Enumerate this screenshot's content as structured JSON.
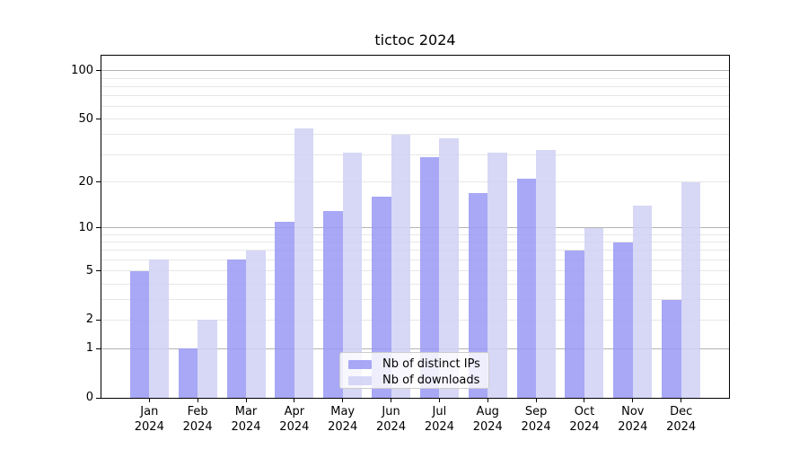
{
  "title": "tictoc 2024",
  "colors": {
    "series_distinct_ips": "#9999f4",
    "series_downloads": "#d0d0f4",
    "axis_text": "#000000",
    "gridline_major": "#b3b3b3",
    "gridline_minor": "#e7e7e7",
    "background": "#ffffff"
  },
  "legend": {
    "items": [
      {
        "label": "Nb of distinct IPs",
        "color": "#9999f4"
      },
      {
        "label": "Nb of downloads",
        "color": "#d0d0f4"
      }
    ]
  },
  "chart_data": {
    "type": "bar",
    "title": "tictoc 2024",
    "categories": [
      "Jan 2024",
      "Feb 2024",
      "Mar 2024",
      "Apr 2024",
      "May 2024",
      "Jun 2024",
      "Jul 2024",
      "Aug 2024",
      "Sep 2024",
      "Oct 2024",
      "Nov 2024",
      "Dec 2024"
    ],
    "x_tick_labels_line1": [
      "Jan",
      "Feb",
      "Mar",
      "Apr",
      "May",
      "Jun",
      "Jul",
      "Aug",
      "Sep",
      "Oct",
      "Nov",
      "Dec"
    ],
    "x_tick_labels_line2": "2024",
    "series": [
      {
        "name": "Nb of distinct IPs",
        "color": "#9999f4",
        "values": [
          5,
          1,
          6,
          11,
          13,
          16,
          29,
          17,
          21,
          7,
          8,
          3
        ]
      },
      {
        "name": "Nb of downloads",
        "color": "#d0d0f4",
        "values": [
          6,
          2,
          7,
          44,
          31,
          40,
          38,
          31,
          32,
          10,
          14,
          20
        ]
      }
    ],
    "y_scale": "log1p (position proportional to log10(1+value))",
    "y_ticks_labeled": [
      0,
      1,
      2,
      5,
      10,
      20,
      50,
      100
    ],
    "y_gridlines_major": [
      1,
      10,
      100
    ],
    "y_gridlines_minor": [
      2,
      3,
      4,
      5,
      6,
      7,
      8,
      9,
      20,
      30,
      40,
      50,
      60,
      70,
      80,
      90
    ],
    "ylim": [
      0,
      124
    ],
    "xlabel": "",
    "ylabel": "",
    "grid": true,
    "legend_position": "lower center inside axes"
  }
}
